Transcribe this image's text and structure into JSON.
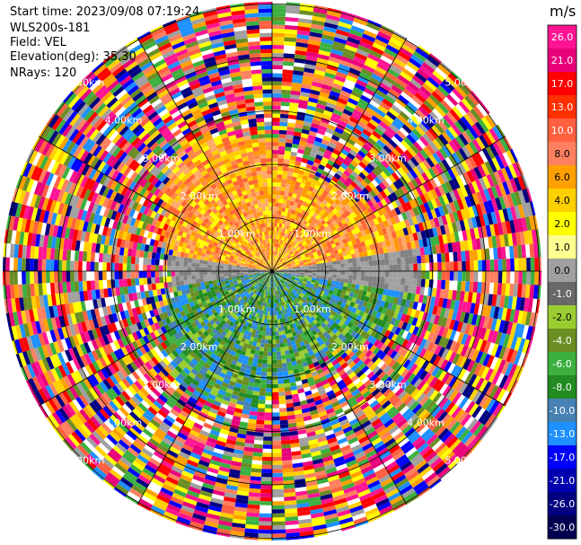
{
  "header": {
    "start_time": "Start time: 2023/09/08 07:19:24",
    "instrument": "WLS200s-181",
    "field": "Field: VEL",
    "elevation": "Elevation(deg): 35.30",
    "nrays": "NRays: 120"
  },
  "ring_labels": [
    "1.00km",
    "2.00km",
    "3.00km",
    "4.00km",
    "5.00km"
  ],
  "colorbar": {
    "unit": "m/s",
    "ticks": [
      "26.0",
      "21.0",
      "17.0",
      "13.0",
      "10.0",
      "8.0",
      "6.0",
      "4.0",
      "2.0",
      "1.0",
      "0.0",
      "-1.0",
      "-2.0",
      "-4.0",
      "-6.0",
      "-8.0",
      "-10.0",
      "-13.0",
      "-17.0",
      "-21.0",
      "-26.0",
      "-30.0"
    ],
    "colors": [
      "#ff1493",
      "#e8007a",
      "#ff0000",
      "#ff3000",
      "#ff6040",
      "#ff8060",
      "#ffa000",
      "#ffd000",
      "#ffff00",
      "#ffff90",
      "#a0a0a0",
      "#686868",
      "#9acd32",
      "#6b8e23",
      "#3cb040",
      "#228b22",
      "#4682b4",
      "#1e90ff",
      "#0000ff",
      "#0000b0",
      "#000080",
      "#000050"
    ]
  },
  "palettes": {
    "positive": [
      "#ff9900",
      "#ffcc00",
      "#ffff00",
      "#ff6633",
      "#ff8844",
      "#ffaa66"
    ],
    "negative": [
      "#3cb040",
      "#228b22",
      "#1e90ff",
      "#4682b4",
      "#6b8e23",
      "#9acd32"
    ],
    "noise": [
      "#ff1493",
      "#e8007a",
      "#ff0000",
      "#ffd000",
      "#ffff00",
      "#0000ff",
      "#000080",
      "#3cb040",
      "#6b8e23",
      "#ff6040",
      "#a0a0a0",
      "#1e90ff",
      "#ff8060",
      "#ffa000",
      "#ffffff"
    ]
  }
}
